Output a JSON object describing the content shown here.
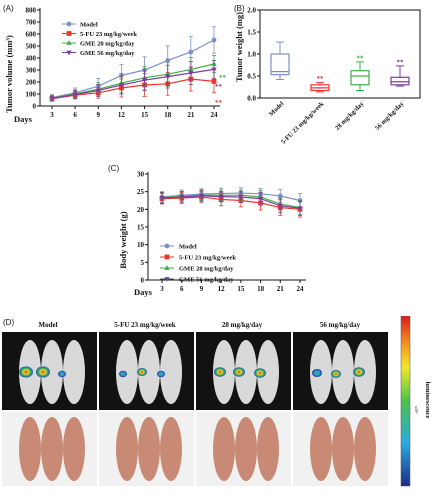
{
  "panel_a": {
    "letter": "(A)",
    "ylabel": "Tumor volume (mm³)",
    "xlabel": "Days",
    "yticks": [
      "0",
      "100",
      "200",
      "300",
      "400",
      "500",
      "600",
      "700",
      "800"
    ],
    "legend": [
      "Model",
      "5-FU 23 mg/kg/week",
      "GME 28 mg/kg/day",
      "GME 56 mg/kg/day"
    ],
    "sig_gme28": "**",
    "sig_gme56": "**",
    "sig_5fu": "**"
  },
  "panel_b": {
    "letter": "(B)",
    "ylabel": "Tumor weight (mg)",
    "yticks": [
      "0.0",
      "0.5",
      "1.0",
      "1.5",
      "2.0"
    ],
    "xticks": [
      "Model",
      "5-FU 23 mg/kg/week",
      "28 mg/kg/day",
      "56 mg/kg/day"
    ],
    "sig_labels": [
      "**",
      "**",
      "**"
    ]
  },
  "panel_c": {
    "letter": "(C)",
    "ylabel": "Body weight (g)",
    "xlabel": "Days",
    "yticks": [
      "0",
      "5",
      "10",
      "15",
      "20",
      "25",
      "30"
    ],
    "legend": [
      "Model",
      "5-FU 23 mg/kg/week",
      "GME 28 mg/kg/day",
      "GME 56 mg/kg/day"
    ]
  },
  "panel_d": {
    "letter": "(D)",
    "labels": [
      "Model",
      "5-FU 23 mg/kg/week",
      "28 mg/kg/day",
      "56 mg/kg/day"
    ],
    "colorbar_label": "luminescence",
    "colorbar_unit": "x10⁶"
  },
  "colors": {
    "model": "#7e8fc8",
    "fu": "#e8372c",
    "gme28": "#3fae49",
    "gme56": "#7b3f98"
  },
  "chart_data": [
    {
      "type": "line",
      "xlabel": "Days",
      "ylabel": "Tumor volume (mm³)",
      "x": [
        3,
        6,
        9,
        12,
        15,
        18,
        21,
        24
      ],
      "ylim": [
        0,
        800
      ],
      "series": [
        {
          "name": "Model",
          "values": [
            70,
            110,
            165,
            255,
            300,
            380,
            450,
            550
          ],
          "err": [
            25,
            40,
            65,
            90,
            110,
            120,
            130,
            110
          ]
        },
        {
          "name": "5-FU 23 mg/kg/week",
          "values": [
            60,
            90,
            110,
            150,
            175,
            185,
            225,
            205
          ],
          "err": [
            20,
            30,
            45,
            75,
            95,
            95,
            100,
            95
          ]
        },
        {
          "name": "GME 28 mg/kg/day",
          "values": [
            65,
            100,
            140,
            190,
            235,
            265,
            305,
            350
          ],
          "err": [
            22,
            35,
            55,
            80,
            95,
            100,
            100,
            70
          ]
        },
        {
          "name": "GME 56 mg/kg/day",
          "values": [
            63,
            95,
            130,
            175,
            215,
            245,
            275,
            305
          ],
          "err": [
            22,
            35,
            50,
            75,
            85,
            95,
            95,
            75
          ]
        }
      ]
    },
    {
      "type": "box",
      "ylabel": "Tumor weight (mg)",
      "categories": [
        "Model",
        "5-FU 23 mg/kg/week",
        "28 mg/kg/day",
        "56 mg/kg/day"
      ],
      "ylim": [
        0,
        2.0
      ],
      "boxes": [
        {
          "min": 0.42,
          "q1": 0.53,
          "median": 0.6,
          "q3": 1.0,
          "max": 1.27
        },
        {
          "min": 0.14,
          "q1": 0.17,
          "median": 0.23,
          "q3": 0.3,
          "max": 0.35
        },
        {
          "min": 0.17,
          "q1": 0.3,
          "median": 0.5,
          "q3": 0.62,
          "max": 0.82
        },
        {
          "min": 0.27,
          "q1": 0.3,
          "median": 0.37,
          "q3": 0.47,
          "max": 0.73
        }
      ]
    },
    {
      "type": "line",
      "xlabel": "Days",
      "ylabel": "Body weight (g)",
      "x": [
        3,
        6,
        9,
        12,
        15,
        18,
        21,
        24
      ],
      "ylim": [
        0,
        30
      ],
      "series": [
        {
          "name": "Model",
          "values": [
            23.5,
            24.0,
            24.3,
            24.5,
            24.6,
            24.4,
            23.8,
            22.5
          ],
          "err": [
            1.5,
            1.5,
            1.5,
            1.5,
            1.5,
            1.5,
            1.8,
            2.0
          ]
        },
        {
          "name": "5-FU 23 mg/kg/week",
          "values": [
            23.0,
            23.2,
            23.5,
            22.8,
            22.5,
            21.8,
            20.5,
            20.0
          ],
          "err": [
            1.5,
            1.5,
            1.5,
            1.8,
            1.8,
            2.0,
            2.2,
            2.2
          ]
        },
        {
          "name": "GME 28 mg/kg/day",
          "values": [
            23.3,
            23.6,
            24.0,
            24.0,
            24.0,
            23.5,
            21.5,
            20.5
          ],
          "err": [
            1.5,
            1.5,
            1.5,
            1.5,
            1.5,
            1.8,
            2.0,
            2.0
          ]
        },
        {
          "name": "GME 56 mg/kg/day",
          "values": [
            23.2,
            23.5,
            23.8,
            23.6,
            23.5,
            23.0,
            21.0,
            20.3
          ],
          "err": [
            1.5,
            1.5,
            1.5,
            1.5,
            1.5,
            1.8,
            2.0,
            2.0
          ]
        }
      ]
    }
  ]
}
